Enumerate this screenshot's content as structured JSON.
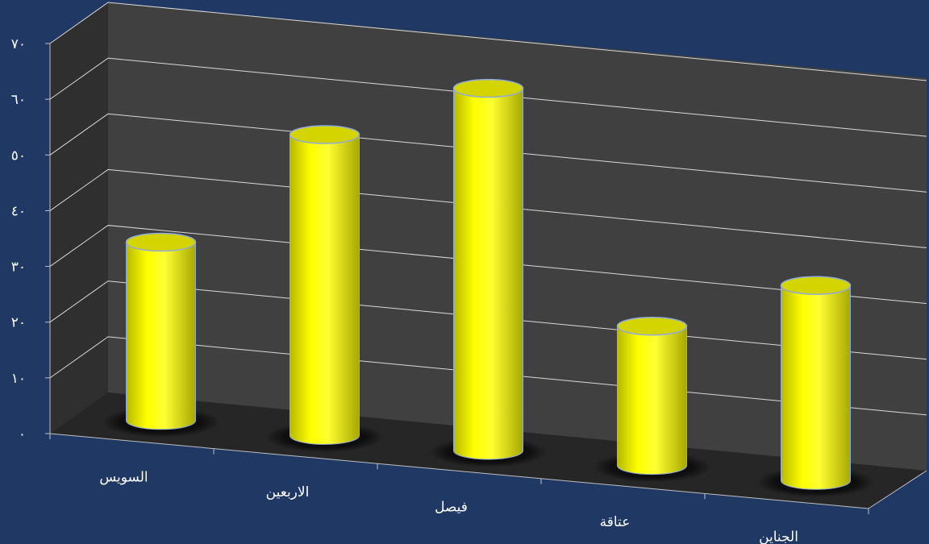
{
  "chart_data": {
    "type": "bar",
    "style": "3d-cylinder",
    "categories": [
      "السويس",
      "الاربعين",
      "فيصل",
      "عتاقة",
      "الجناين"
    ],
    "values": [
      32,
      54,
      65,
      25,
      35
    ],
    "ylim": [
      0,
      70
    ],
    "yticks": [
      0,
      10,
      20,
      30,
      40,
      50,
      60,
      70
    ],
    "ytick_labels": [
      "٠",
      "١٠",
      "٢٠",
      "٣٠",
      "٤٠",
      "٥٠",
      "٦٠",
      "٧٠"
    ],
    "grid": true,
    "colors": {
      "background": "#1f3864",
      "back_wall": "#404040",
      "side_wall": "#2f2f2f",
      "floor": "#262626",
      "gridline": "#d9d9d9",
      "bar": "#ffff00",
      "bar_edge": "#8faadc"
    }
  }
}
